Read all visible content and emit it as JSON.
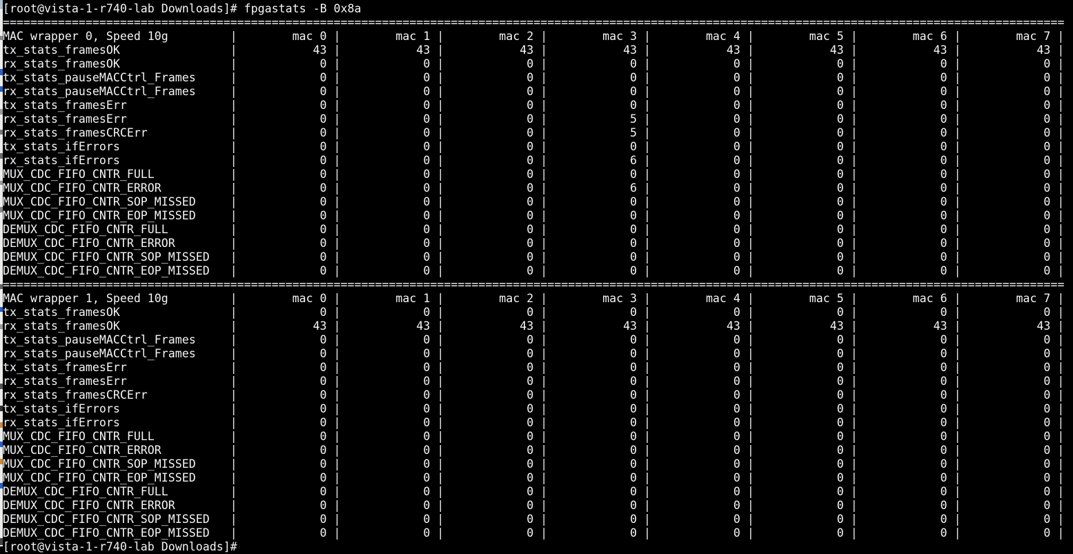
{
  "terminal": {
    "prompt": "[root@vista-1-r740-lab Downloads]#",
    "command": "fpgastats -B 0x8a",
    "bottom_prompt": "[root@vista-1-r740-lab Downloads]#",
    "separator_char": "=",
    "separator_length": 154,
    "column_separator": "|"
  },
  "columns": [
    "mac 0",
    "mac 1",
    "mac 2",
    "mac 3",
    "mac 4",
    "mac 5",
    "mac 6",
    "mac 7"
  ],
  "tables": [
    {
      "title": "MAC wrapper 0, Speed 10g",
      "rows": [
        {
          "label": "tx_stats_framesOK",
          "values": [
            43,
            43,
            43,
            43,
            43,
            43,
            43,
            43
          ]
        },
        {
          "label": "rx_stats_framesOK",
          "values": [
            0,
            0,
            0,
            0,
            0,
            0,
            0,
            0
          ]
        },
        {
          "label": "tx_stats_pauseMACCtrl_Frames",
          "values": [
            0,
            0,
            0,
            0,
            0,
            0,
            0,
            0
          ]
        },
        {
          "label": "rx_stats_pauseMACCtrl_Frames",
          "values": [
            0,
            0,
            0,
            0,
            0,
            0,
            0,
            0
          ]
        },
        {
          "label": "tx_stats_framesErr",
          "values": [
            0,
            0,
            0,
            0,
            0,
            0,
            0,
            0
          ]
        },
        {
          "label": "rx_stats_framesErr",
          "values": [
            0,
            0,
            0,
            5,
            0,
            0,
            0,
            0
          ]
        },
        {
          "label": "rx_stats_framesCRCErr",
          "values": [
            0,
            0,
            0,
            5,
            0,
            0,
            0,
            0
          ]
        },
        {
          "label": "tx_stats_ifErrors",
          "values": [
            0,
            0,
            0,
            0,
            0,
            0,
            0,
            0
          ]
        },
        {
          "label": "rx_stats_ifErrors",
          "values": [
            0,
            0,
            0,
            6,
            0,
            0,
            0,
            0
          ]
        },
        {
          "label": "MUX_CDC_FIFO_CNTR_FULL",
          "values": [
            0,
            0,
            0,
            0,
            0,
            0,
            0,
            0
          ]
        },
        {
          "label": "MUX_CDC_FIFO_CNTR_ERROR",
          "values": [
            0,
            0,
            0,
            6,
            0,
            0,
            0,
            0
          ]
        },
        {
          "label": "MUX_CDC_FIFO_CNTR_SOP_MISSED",
          "values": [
            0,
            0,
            0,
            0,
            0,
            0,
            0,
            0
          ]
        },
        {
          "label": "MUX_CDC_FIFO_CNTR_EOP_MISSED",
          "values": [
            0,
            0,
            0,
            0,
            0,
            0,
            0,
            0
          ]
        },
        {
          "label": "DEMUX_CDC_FIFO_CNTR_FULL",
          "values": [
            0,
            0,
            0,
            0,
            0,
            0,
            0,
            0
          ]
        },
        {
          "label": "DEMUX_CDC_FIFO_CNTR_ERROR",
          "values": [
            0,
            0,
            0,
            0,
            0,
            0,
            0,
            0
          ]
        },
        {
          "label": "DEMUX_CDC_FIFO_CNTR_SOP_MISSED",
          "values": [
            0,
            0,
            0,
            0,
            0,
            0,
            0,
            0
          ]
        },
        {
          "label": "DEMUX_CDC_FIFO_CNTR_EOP_MISSED",
          "values": [
            0,
            0,
            0,
            0,
            0,
            0,
            0,
            0
          ]
        }
      ]
    },
    {
      "title": "MAC wrapper 1, Speed 10g",
      "rows": [
        {
          "label": "tx_stats_framesOK",
          "values": [
            0,
            0,
            0,
            0,
            0,
            0,
            0,
            0
          ]
        },
        {
          "label": "rx_stats_framesOK",
          "values": [
            43,
            43,
            43,
            43,
            43,
            43,
            43,
            43
          ]
        },
        {
          "label": "tx_stats_pauseMACCtrl_Frames",
          "values": [
            0,
            0,
            0,
            0,
            0,
            0,
            0,
            0
          ]
        },
        {
          "label": "rx_stats_pauseMACCtrl_Frames",
          "values": [
            0,
            0,
            0,
            0,
            0,
            0,
            0,
            0
          ]
        },
        {
          "label": "tx_stats_framesErr",
          "values": [
            0,
            0,
            0,
            0,
            0,
            0,
            0,
            0
          ]
        },
        {
          "label": "rx_stats_framesErr",
          "values": [
            0,
            0,
            0,
            0,
            0,
            0,
            0,
            0
          ]
        },
        {
          "label": "rx_stats_framesCRCErr",
          "values": [
            0,
            0,
            0,
            0,
            0,
            0,
            0,
            0
          ]
        },
        {
          "label": "tx_stats_ifErrors",
          "values": [
            0,
            0,
            0,
            0,
            0,
            0,
            0,
            0
          ]
        },
        {
          "label": "rx_stats_ifErrors",
          "values": [
            0,
            0,
            0,
            0,
            0,
            0,
            0,
            0
          ]
        },
        {
          "label": "MUX_CDC_FIFO_CNTR_FULL",
          "values": [
            0,
            0,
            0,
            0,
            0,
            0,
            0,
            0
          ]
        },
        {
          "label": "MUX_CDC_FIFO_CNTR_ERROR",
          "values": [
            0,
            0,
            0,
            0,
            0,
            0,
            0,
            0
          ]
        },
        {
          "label": "MUX_CDC_FIFO_CNTR_SOP_MISSED",
          "values": [
            0,
            0,
            0,
            0,
            0,
            0,
            0,
            0
          ]
        },
        {
          "label": "MUX_CDC_FIFO_CNTR_EOP_MISSED",
          "values": [
            0,
            0,
            0,
            0,
            0,
            0,
            0,
            0
          ]
        },
        {
          "label": "DEMUX_CDC_FIFO_CNTR_FULL",
          "values": [
            0,
            0,
            0,
            0,
            0,
            0,
            0,
            0
          ]
        },
        {
          "label": "DEMUX_CDC_FIFO_CNTR_ERROR",
          "values": [
            0,
            0,
            0,
            0,
            0,
            0,
            0,
            0
          ]
        },
        {
          "label": "DEMUX_CDC_FIFO_CNTR_SOP_MISSED",
          "values": [
            0,
            0,
            0,
            0,
            0,
            0,
            0,
            0
          ]
        },
        {
          "label": "DEMUX_CDC_FIFO_CNTR_EOP_MISSED",
          "values": [
            0,
            0,
            0,
            0,
            0,
            0,
            0,
            0
          ]
        }
      ]
    }
  ],
  "colors": {
    "background": "#000000",
    "text": "#f5f5f5"
  }
}
